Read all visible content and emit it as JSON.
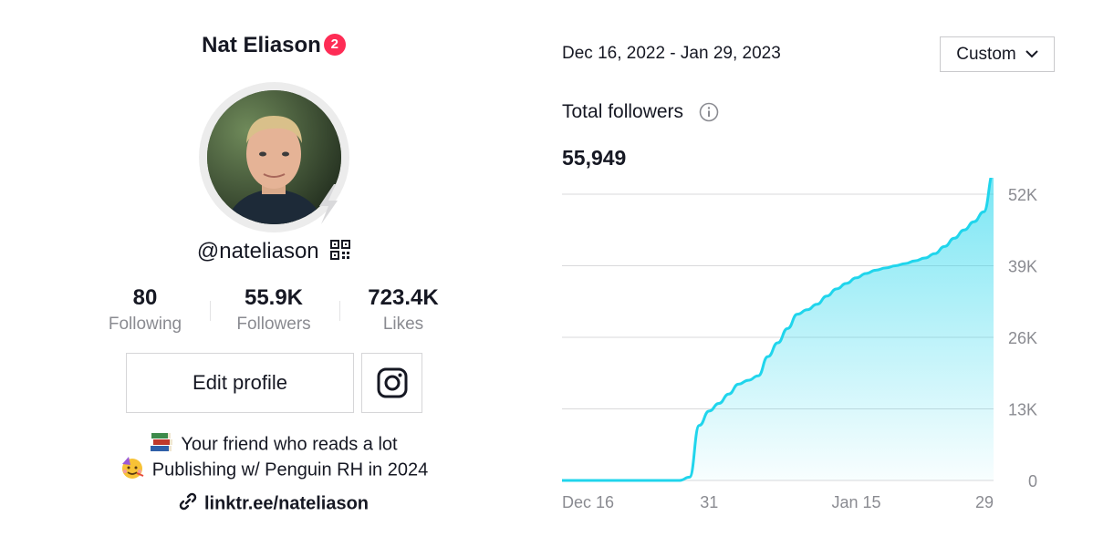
{
  "profile": {
    "name": "Nat Eliason",
    "badge_count": "2",
    "handle": "@nateliason",
    "stats": [
      {
        "value": "80",
        "label": "Following"
      },
      {
        "value": "55.9K",
        "label": "Followers"
      },
      {
        "value": "723.4K",
        "label": "Likes"
      }
    ],
    "edit_label": "Edit profile",
    "bio_lines": [
      {
        "icon": "books-icon",
        "text": "Your friend who reads a lot"
      },
      {
        "icon": "party-face-icon",
        "text": "Publishing w/ Penguin RH in 2024"
      }
    ],
    "link": "linktr.ee/nateliason",
    "colors": {
      "badge": "#fe2c55",
      "text": "#161823",
      "muted": "#8a8b91"
    }
  },
  "analytics": {
    "date_range": "Dec 16, 2022 - Jan 29, 2023",
    "range_selector": "Custom",
    "metric_title": "Total followers",
    "metric_value": "55,949"
  },
  "chart_data": {
    "type": "area",
    "title": "Total followers",
    "x_tick_labels": [
      "Dec 16",
      "31",
      "Jan 15",
      "29"
    ],
    "y_tick_labels": [
      "52K",
      "39K",
      "26K",
      "13K",
      "0"
    ],
    "ylim": [
      0,
      52000
    ],
    "grid": true,
    "line_color": "#20d5ec",
    "x": [
      "2022-12-16",
      "2022-12-17",
      "2022-12-18",
      "2022-12-19",
      "2022-12-20",
      "2022-12-21",
      "2022-12-22",
      "2022-12-23",
      "2022-12-24",
      "2022-12-25",
      "2022-12-26",
      "2022-12-27",
      "2022-12-28",
      "2022-12-29",
      "2022-12-30",
      "2022-12-31",
      "2023-01-01",
      "2023-01-02",
      "2023-01-03",
      "2023-01-04",
      "2023-01-05",
      "2023-01-06",
      "2023-01-07",
      "2023-01-08",
      "2023-01-09",
      "2023-01-10",
      "2023-01-11",
      "2023-01-12",
      "2023-01-13",
      "2023-01-14",
      "2023-01-15",
      "2023-01-16",
      "2023-01-17",
      "2023-01-18",
      "2023-01-19",
      "2023-01-20",
      "2023-01-21",
      "2023-01-22",
      "2023-01-23",
      "2023-01-24",
      "2023-01-25",
      "2023-01-26",
      "2023-01-27",
      "2023-01-28",
      "2023-01-29"
    ],
    "series": [
      {
        "values": [
          0,
          0,
          0,
          0,
          0,
          0,
          0,
          0,
          0,
          0,
          0,
          0,
          0,
          600,
          10000,
          12600,
          14000,
          15700,
          17500,
          18200,
          19000,
          22500,
          25000,
          27600,
          30200,
          31000,
          32000,
          33500,
          34800,
          35800,
          36800,
          37600,
          38200,
          38600,
          39000,
          39400,
          39900,
          40400,
          41200,
          42500,
          44000,
          45500,
          47000,
          48800,
          55949
        ]
      }
    ]
  }
}
